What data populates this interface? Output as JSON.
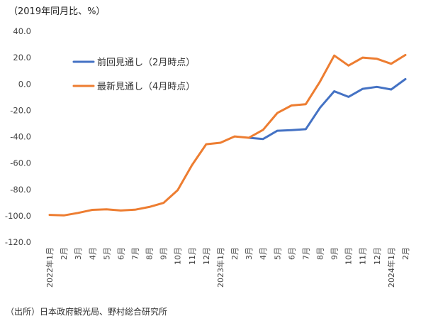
{
  "chart_data": {
    "type": "line",
    "title": "",
    "unit_label": "（2019年同月比、%）",
    "xlabel": "",
    "ylabel": "",
    "ylim": [
      -120,
      40
    ],
    "yticks": [
      "40.0",
      "20.0",
      "0.0",
      "-20.0",
      "-40.0",
      "-60.0",
      "-80.0",
      "-100.0",
      "-120.0"
    ],
    "categories": [
      "2022年1月",
      "2月",
      "3月",
      "4月",
      "5月",
      "6月",
      "7月",
      "8月",
      "9月",
      "10月",
      "11月",
      "12月",
      "2023年1月",
      "2月",
      "3月",
      "4月",
      "5月",
      "6月",
      "7月",
      "8月",
      "9月",
      "10月",
      "11月",
      "12月",
      "2024年1月",
      "2月"
    ],
    "grid": false,
    "legend_position": "top-left",
    "series": [
      {
        "name": "前回見通し（2月時点）",
        "color": "#4472C4",
        "values": [
          null,
          null,
          null,
          null,
          null,
          null,
          null,
          null,
          null,
          null,
          null,
          null,
          null,
          null,
          -40.8,
          -41.7,
          -35.5,
          -35.0,
          -34.3,
          -18.0,
          -5.5,
          -9.8,
          -3.7,
          -2.2,
          -4.2,
          3.7
        ]
      },
      {
        "name": "最新見通し（4月時点）",
        "color": "#ED7D31",
        "values": [
          -99.3,
          -99.7,
          -97.8,
          -95.5,
          -95.1,
          -96.0,
          -95.4,
          -93.3,
          -90.2,
          -80.5,
          -61.6,
          -45.7,
          -44.6,
          -39.8,
          -40.8,
          -34.8,
          -22.0,
          -16.3,
          -15.3,
          1.8,
          21.6,
          14.0,
          20.0,
          19.1,
          15.3,
          22.0
        ]
      }
    ]
  },
  "source_note": "（出所）日本政府観光局、野村総合研究所"
}
